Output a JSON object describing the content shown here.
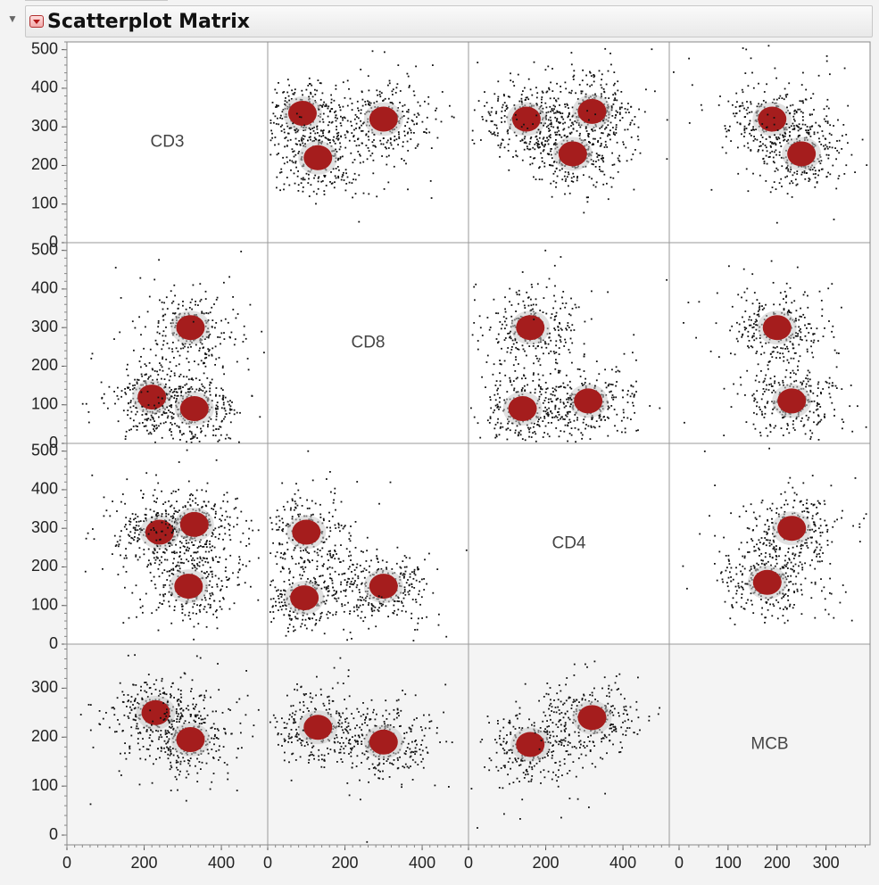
{
  "header": {
    "title": "Scatterplot Matrix"
  },
  "chart_data": {
    "type": "scatter",
    "title": "Scatterplot Matrix",
    "variables": [
      "CD3",
      "CD8",
      "CD4",
      "MCB"
    ],
    "ranges": {
      "CD3": [
        0,
        520
      ],
      "CD8": [
        0,
        520
      ],
      "CD4": [
        0,
        520
      ],
      "MCB": [
        -20,
        390
      ]
    },
    "x_ticks": {
      "CD3": [
        0,
        200,
        400
      ],
      "CD8": [
        0,
        200,
        400
      ],
      "CD4": [
        0,
        200,
        400
      ],
      "MCB": [
        0,
        100,
        200,
        300
      ]
    },
    "y_ticks": {
      "CD3": [
        0,
        100,
        200,
        300,
        400,
        500
      ],
      "CD8": [
        0,
        100,
        200,
        300,
        400,
        500
      ],
      "CD4": [
        0,
        100,
        200,
        300,
        400,
        500
      ],
      "MCB": [
        0,
        100,
        200,
        300
      ]
    },
    "clusters": [
      {
        "x": "CD8",
        "y": "CD3",
        "points": [
          [
            90,
            335
          ],
          [
            130,
            220
          ],
          [
            300,
            320
          ]
        ]
      },
      {
        "x": "CD4",
        "y": "CD3",
        "points": [
          [
            150,
            320
          ],
          [
            320,
            340
          ],
          [
            270,
            230
          ]
        ]
      },
      {
        "x": "MCB",
        "y": "CD3",
        "points": [
          [
            190,
            320
          ],
          [
            250,
            230
          ]
        ]
      },
      {
        "x": "CD3",
        "y": "CD8",
        "points": [
          [
            320,
            300
          ],
          [
            220,
            120
          ],
          [
            330,
            90
          ]
        ]
      },
      {
        "x": "CD4",
        "y": "CD8",
        "points": [
          [
            160,
            300
          ],
          [
            310,
            110
          ],
          [
            140,
            90
          ]
        ]
      },
      {
        "x": "MCB",
        "y": "CD8",
        "points": [
          [
            200,
            300
          ],
          [
            230,
            110
          ]
        ]
      },
      {
        "x": "CD3",
        "y": "CD4",
        "points": [
          [
            240,
            290
          ],
          [
            330,
            310
          ],
          [
            315,
            150
          ]
        ]
      },
      {
        "x": "CD8",
        "y": "CD4",
        "points": [
          [
            100,
            290
          ],
          [
            300,
            150
          ],
          [
            95,
            120
          ]
        ]
      },
      {
        "x": "MCB",
        "y": "CD4",
        "points": [
          [
            230,
            300
          ],
          [
            180,
            160
          ]
        ]
      },
      {
        "x": "CD3",
        "y": "MCB",
        "points": [
          [
            230,
            250
          ],
          [
            320,
            195
          ]
        ]
      },
      {
        "x": "CD8",
        "y": "MCB",
        "points": [
          [
            130,
            220
          ],
          [
            300,
            190
          ]
        ]
      },
      {
        "x": "CD4",
        "y": "MCB",
        "points": [
          [
            160,
            185
          ],
          [
            320,
            240
          ]
        ]
      }
    ],
    "grid": false,
    "legend": "none"
  }
}
